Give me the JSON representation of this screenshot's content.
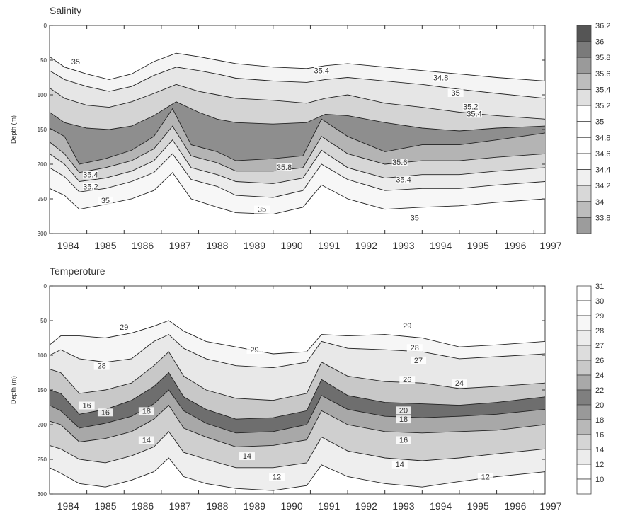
{
  "chart_data": [
    {
      "type": "contour",
      "title": "Salinity",
      "ylabel": "Depth (m)",
      "xlim": [
        1984.0,
        1997.3
      ],
      "ylim": [
        300,
        0
      ],
      "y_ticks": [
        "0",
        "50",
        "100",
        "150",
        "200",
        "250",
        "300"
      ],
      "x_ticks": [
        "1984",
        "1985",
        "1986",
        "1987",
        "1988",
        "1989",
        "1990",
        "1991",
        "1992",
        "1993",
        "1994",
        "1995",
        "1996",
        "1997"
      ],
      "colorbar": [
        "36.2",
        "36",
        "35.8",
        "35.6",
        "35.4",
        "35.2",
        "35",
        "34.8",
        "34.6",
        "34.4",
        "34.2",
        "34",
        "33.8"
      ],
      "colorbar_fill": [
        "#555555",
        "#7a7a7a",
        "#9a9a9a",
        "#bdbdbd",
        "#e0e0e0",
        "#ffffff",
        "#ffffff",
        "#ffffff",
        "#ffffff",
        "#f0f0f0",
        "#d8d8d8",
        "#bcbcbc",
        "#9c9c9c"
      ],
      "contour_labels": [
        {
          "text": "35",
          "x": 1984.7,
          "y": 55
        },
        {
          "text": "35.4",
          "x": 1991.3,
          "y": 68
        },
        {
          "text": "35.2",
          "x": 1995.3,
          "y": 120
        },
        {
          "text": "35.4",
          "x": 1995.4,
          "y": 130
        },
        {
          "text": "34.8",
          "x": 1994.5,
          "y": 78
        },
        {
          "text": "35",
          "x": 1994.9,
          "y": 100
        },
        {
          "text": "35.8",
          "x": 1990.3,
          "y": 207
        },
        {
          "text": "35.6",
          "x": 1993.4,
          "y": 200
        },
        {
          "text": "35.4",
          "x": 1993.5,
          "y": 225
        },
        {
          "text": "35.4",
          "x": 1985.1,
          "y": 218
        },
        {
          "text": "35.2",
          "x": 1985.1,
          "y": 235
        },
        {
          "text": "35",
          "x": 1985.5,
          "y": 255
        },
        {
          "text": "35",
          "x": 1989.7,
          "y": 268
        },
        {
          "text": "35",
          "x": 1993.8,
          "y": 280
        }
      ],
      "series": [
        {
          "name": "sal_line_35_0_upper",
          "x": [
            1984.0,
            1984.4,
            1985.0,
            1985.6,
            1986.2,
            1986.8,
            1987.4,
            1988.0,
            1988.5,
            1989.0,
            1990.0,
            1990.9,
            1991.4,
            1992.0,
            1993.0,
            1994.0,
            1995.0,
            1996.0,
            1997.3
          ],
          "y": [
            45,
            60,
            70,
            78,
            70,
            52,
            40,
            45,
            50,
            55,
            60,
            62,
            58,
            55,
            60,
            65,
            70,
            75,
            80
          ]
        },
        {
          "name": "sal_line_35_2",
          "x": [
            1984.0,
            1984.4,
            1985.0,
            1985.6,
            1986.2,
            1986.8,
            1987.4,
            1988.0,
            1988.5,
            1989.0,
            1990.0,
            1990.9,
            1991.4,
            1992.0,
            1993.0,
            1994.0,
            1995.0,
            1996.0,
            1997.3
          ],
          "y": [
            65,
            78,
            88,
            95,
            88,
            72,
            60,
            65,
            70,
            76,
            80,
            82,
            78,
            75,
            80,
            85,
            92,
            98,
            105
          ]
        },
        {
          "name": "sal_line_35_4",
          "x": [
            1984.0,
            1984.4,
            1985.0,
            1985.6,
            1986.2,
            1986.8,
            1987.4,
            1988.0,
            1988.5,
            1989.0,
            1990.0,
            1990.9,
            1991.4,
            1992.0,
            1993.0,
            1994.0,
            1995.0,
            1996.0,
            1997.3
          ],
          "y": [
            90,
            105,
            115,
            118,
            110,
            98,
            85,
            95,
            100,
            105,
            108,
            112,
            105,
            100,
            112,
            118,
            125,
            130,
            135
          ]
        },
        {
          "name": "sal_line_35_6",
          "x": [
            1984.0,
            1984.4,
            1985.0,
            1985.6,
            1986.2,
            1986.8,
            1987.4,
            1988.0,
            1988.5,
            1989.0,
            1990.0,
            1990.9,
            1991.4,
            1992.0,
            1993.0,
            1994.0,
            1995.0,
            1996.0,
            1997.3
          ],
          "y": [
            125,
            140,
            148,
            150,
            145,
            130,
            110,
            125,
            135,
            140,
            142,
            140,
            128,
            130,
            140,
            148,
            152,
            148,
            145
          ]
        },
        {
          "name": "sal_line_35_8",
          "x": [
            1984.0,
            1984.4,
            1984.8,
            1985.5,
            1986.2,
            1986.8,
            1987.3,
            1987.8,
            1988.5,
            1989.0,
            1990.0,
            1990.8,
            1991.3,
            1992.0,
            1993.0,
            1994.0,
            1995.0,
            1996.0,
            1997.3
          ],
          "y": [
            148,
            160,
            200,
            192,
            180,
            160,
            120,
            172,
            182,
            195,
            192,
            188,
            135,
            160,
            182,
            172,
            172,
            165,
            155
          ]
        },
        {
          "name": "sal_line_35_6_lower",
          "x": [
            1984.0,
            1984.4,
            1984.8,
            1985.5,
            1986.2,
            1986.8,
            1987.3,
            1987.8,
            1988.5,
            1989.0,
            1990.0,
            1990.8,
            1991.3,
            1992.0,
            1993.0,
            1994.0,
            1995.0,
            1996.0,
            1997.3
          ],
          "y": [
            168,
            185,
            212,
            205,
            195,
            178,
            145,
            188,
            198,
            210,
            210,
            205,
            160,
            185,
            200,
            195,
            195,
            190,
            185
          ]
        },
        {
          "name": "sal_line_35_4_lower",
          "x": [
            1984.0,
            1984.4,
            1984.8,
            1985.5,
            1986.2,
            1986.8,
            1987.3,
            1987.8,
            1988.5,
            1989.0,
            1990.0,
            1990.8,
            1991.3,
            1992.0,
            1993.0,
            1994.0,
            1995.0,
            1996.0,
            1997.3
          ],
          "y": [
            185,
            200,
            225,
            220,
            210,
            195,
            165,
            205,
            215,
            225,
            228,
            220,
            180,
            205,
            220,
            215,
            215,
            210,
            205
          ]
        },
        {
          "name": "sal_line_35_2_lower",
          "x": [
            1984.0,
            1984.4,
            1984.8,
            1985.5,
            1986.2,
            1986.8,
            1987.3,
            1987.8,
            1988.5,
            1989.0,
            1990.0,
            1990.8,
            1991.3,
            1992.0,
            1993.0,
            1994.0,
            1995.0,
            1996.0,
            1997.3
          ],
          "y": [
            205,
            218,
            240,
            235,
            225,
            212,
            185,
            222,
            232,
            245,
            248,
            238,
            200,
            222,
            238,
            235,
            235,
            230,
            225
          ]
        },
        {
          "name": "sal_line_35_0_lower",
          "x": [
            1984.0,
            1984.4,
            1984.8,
            1985.5,
            1986.2,
            1986.8,
            1987.3,
            1987.8,
            1988.5,
            1989.0,
            1990.0,
            1990.8,
            1991.3,
            1992.0,
            1993.0,
            1994.0,
            1995.0,
            1996.0,
            1997.3
          ],
          "y": [
            235,
            245,
            265,
            258,
            250,
            238,
            212,
            250,
            262,
            270,
            272,
            262,
            230,
            250,
            265,
            262,
            260,
            255,
            250
          ]
        }
      ]
    },
    {
      "type": "contour",
      "title": "Temperoture",
      "ylabel": "Depth (m)",
      "xlim": [
        1984.0,
        1997.3
      ],
      "ylim": [
        300,
        0
      ],
      "y_ticks": [
        "0",
        "50",
        "100",
        "150",
        "200",
        "250",
        "300"
      ],
      "x_ticks": [
        "1984",
        "1985",
        "1986",
        "1987",
        "1988",
        "1989",
        "1990",
        "1991",
        "1992",
        "1993",
        "1994",
        "1995",
        "1996",
        "1997"
      ],
      "colorbar": [
        "31",
        "30",
        "29",
        "28",
        "27",
        "26",
        "24",
        "22",
        "20",
        "18",
        "16",
        "14",
        "12",
        "10"
      ],
      "colorbar_fill": [
        "#ffffff",
        "#ffffff",
        "#f7f7f7",
        "#ececec",
        "#dddddd",
        "#c9c9c9",
        "#a9a9a9",
        "#7f7f7f",
        "#999999",
        "#b8b8b8",
        "#d5d5d5",
        "#ececec",
        "#ffffff",
        "#ffffff"
      ],
      "contour_labels": [
        {
          "text": "29",
          "x": 1986.0,
          "y": 62
        },
        {
          "text": "29",
          "x": 1989.5,
          "y": 95
        },
        {
          "text": "29",
          "x": 1993.6,
          "y": 60
        },
        {
          "text": "28",
          "x": 1985.4,
          "y": 118
        },
        {
          "text": "28",
          "x": 1993.8,
          "y": 92
        },
        {
          "text": "27",
          "x": 1993.9,
          "y": 110
        },
        {
          "text": "26",
          "x": 1993.6,
          "y": 138
        },
        {
          "text": "24",
          "x": 1995.0,
          "y": 143
        },
        {
          "text": "20",
          "x": 1993.5,
          "y": 182
        },
        {
          "text": "18",
          "x": 1993.5,
          "y": 195
        },
        {
          "text": "16",
          "x": 1993.5,
          "y": 225
        },
        {
          "text": "14",
          "x": 1993.4,
          "y": 260
        },
        {
          "text": "12",
          "x": 1995.7,
          "y": 278
        },
        {
          "text": "14",
          "x": 1986.6,
          "y": 225
        },
        {
          "text": "14",
          "x": 1989.3,
          "y": 248
        },
        {
          "text": "12",
          "x": 1990.1,
          "y": 278
        },
        {
          "text": "16",
          "x": 1985.0,
          "y": 175
        },
        {
          "text": "16",
          "x": 1985.5,
          "y": 185
        },
        {
          "text": "18",
          "x": 1986.6,
          "y": 183
        }
      ],
      "series": [
        {
          "name": "temp_line_29",
          "x": [
            1984.0,
            1984.3,
            1984.8,
            1985.5,
            1986.2,
            1986.8,
            1987.2,
            1987.6,
            1988.2,
            1989.0,
            1990.0,
            1990.9,
            1991.3,
            1992.0,
            1993.0,
            1994.0,
            1995.0,
            1996.0,
            1997.3
          ],
          "y": [
            85,
            72,
            72,
            75,
            68,
            58,
            50,
            65,
            80,
            88,
            98,
            95,
            70,
            72,
            70,
            75,
            88,
            85,
            80
          ]
        },
        {
          "name": "temp_line_28",
          "x": [
            1984.0,
            1984.3,
            1984.8,
            1985.5,
            1986.2,
            1986.8,
            1987.2,
            1987.6,
            1988.2,
            1989.0,
            1990.0,
            1990.9,
            1991.3,
            1992.0,
            1993.0,
            1994.0,
            1995.0,
            1996.0,
            1997.3
          ],
          "y": [
            100,
            92,
            105,
            110,
            105,
            80,
            70,
            90,
            105,
            115,
            118,
            110,
            80,
            90,
            92,
            95,
            105,
            102,
            98
          ]
        },
        {
          "name": "temp_line_26",
          "x": [
            1984.0,
            1984.3,
            1984.8,
            1985.5,
            1986.2,
            1986.8,
            1987.2,
            1987.6,
            1988.2,
            1989.0,
            1990.0,
            1990.9,
            1991.3,
            1992.0,
            1993.0,
            1994.0,
            1995.0,
            1996.0,
            1997.3
          ],
          "y": [
            120,
            125,
            155,
            150,
            140,
            115,
            95,
            130,
            150,
            162,
            165,
            155,
            110,
            130,
            138,
            140,
            148,
            145,
            140
          ]
        },
        {
          "name": "temp_line_22",
          "x": [
            1984.0,
            1984.3,
            1984.8,
            1985.5,
            1986.2,
            1986.8,
            1987.2,
            1987.6,
            1988.2,
            1989.0,
            1990.0,
            1990.9,
            1991.3,
            1992.0,
            1993.0,
            1994.0,
            1995.0,
            1996.0,
            1997.3
          ],
          "y": [
            150,
            155,
            185,
            178,
            165,
            145,
            125,
            160,
            178,
            192,
            190,
            180,
            135,
            158,
            168,
            170,
            172,
            168,
            160
          ]
        },
        {
          "name": "temp_line_18",
          "x": [
            1984.0,
            1984.3,
            1984.8,
            1985.5,
            1986.2,
            1986.8,
            1987.2,
            1987.6,
            1988.2,
            1989.0,
            1990.0,
            1990.9,
            1991.3,
            1992.0,
            1993.0,
            1994.0,
            1995.0,
            1996.0,
            1997.3
          ],
          "y": [
            172,
            180,
            205,
            198,
            188,
            170,
            150,
            180,
            198,
            212,
            210,
            200,
            158,
            178,
            188,
            190,
            188,
            185,
            178
          ]
        },
        {
          "name": "temp_line_16",
          "x": [
            1984.0,
            1984.3,
            1984.8,
            1985.5,
            1986.2,
            1986.8,
            1987.2,
            1987.6,
            1988.2,
            1989.0,
            1990.0,
            1990.9,
            1991.3,
            1992.0,
            1993.0,
            1994.0,
            1995.0,
            1996.0,
            1997.3
          ],
          "y": [
            195,
            200,
            225,
            220,
            210,
            192,
            172,
            205,
            218,
            232,
            230,
            222,
            180,
            200,
            210,
            212,
            210,
            208,
            200
          ]
        },
        {
          "name": "temp_line_14",
          "x": [
            1984.0,
            1984.3,
            1984.8,
            1985.5,
            1986.2,
            1986.8,
            1987.2,
            1987.6,
            1988.2,
            1989.0,
            1990.0,
            1990.9,
            1991.3,
            1992.0,
            1993.0,
            1994.0,
            1995.0,
            1996.0,
            1997.3
          ],
          "y": [
            230,
            235,
            250,
            255,
            245,
            232,
            210,
            240,
            250,
            262,
            262,
            255,
            218,
            238,
            248,
            252,
            248,
            242,
            235
          ]
        },
        {
          "name": "temp_line_12",
          "x": [
            1984.0,
            1984.3,
            1984.8,
            1985.5,
            1986.2,
            1986.8,
            1987.2,
            1987.6,
            1988.2,
            1989.0,
            1990.0,
            1990.9,
            1991.3,
            1992.0,
            1993.0,
            1994.0,
            1995.0,
            1996.0,
            1997.3
          ],
          "y": [
            262,
            270,
            285,
            290,
            280,
            268,
            248,
            275,
            285,
            292,
            295,
            288,
            258,
            275,
            285,
            290,
            282,
            275,
            268
          ]
        }
      ]
    }
  ]
}
